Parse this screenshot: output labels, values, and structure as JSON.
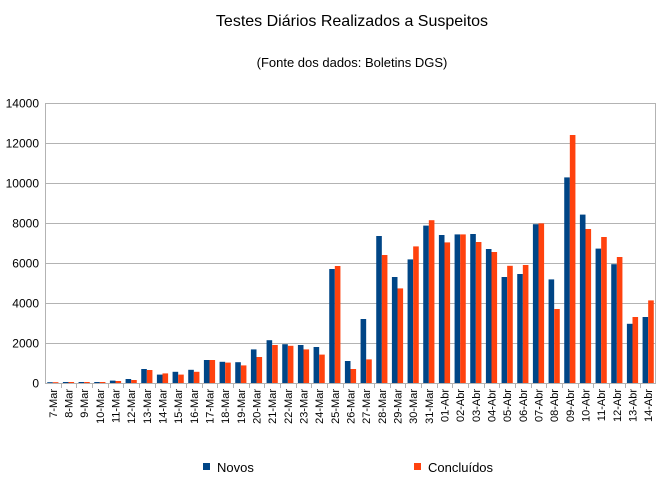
{
  "chart_data": {
    "type": "bar",
    "title": "Testes Diários Realizados a Suspeitos",
    "subtitle": "(Fonte dos dados: Boletins DGS)",
    "xlabel": "",
    "ylabel": "",
    "ylim": [
      0,
      14000
    ],
    "yticks": [
      0,
      2000,
      4000,
      6000,
      8000,
      10000,
      12000,
      14000
    ],
    "grid": true,
    "legend_position": "bottom",
    "categories": [
      "7-Mar",
      "8-Mar",
      "9-Mar",
      "10-Mar",
      "11-Mar",
      "12-Mar",
      "13-Mar",
      "14-Mar",
      "15-Mar",
      "16-Mar",
      "17-Mar",
      "18-Mar",
      "19-Mar",
      "20-Mar",
      "21-Mar",
      "22-Mar",
      "23-Mar",
      "24-Mar",
      "25-Mar",
      "26-Mar",
      "27-Mar",
      "28-Mar",
      "29-Mar",
      "30-Mar",
      "31-Mar",
      "01-Abr",
      "02-Abr",
      "03-Abr",
      "04-Abr",
      "05-Abr",
      "06-Abr",
      "07-Abr",
      "08-Abr",
      "09-Abr",
      "10-Abr",
      "11-Abr",
      "12-Abr",
      "13-Abr",
      "14-Abr"
    ],
    "series": [
      {
        "name": "Novos",
        "color": "#004586",
        "values": [
          40,
          50,
          50,
          50,
          120,
          200,
          700,
          420,
          560,
          660,
          1150,
          1060,
          1040,
          1680,
          2140,
          1940,
          1900,
          1800,
          5700,
          1100,
          3200,
          7350,
          5300,
          6180,
          7870,
          7400,
          7430,
          7450,
          6700,
          5300,
          5450,
          7940,
          5180,
          10280,
          8420,
          6720,
          5940,
          2960,
          3300
        ]
      },
      {
        "name": "Concluídos",
        "color": "#ff420e",
        "values": [
          40,
          50,
          50,
          50,
          100,
          150,
          650,
          480,
          420,
          560,
          1150,
          1020,
          880,
          1300,
          1900,
          1860,
          1680,
          1420,
          5850,
          700,
          1180,
          6400,
          4730,
          6830,
          8140,
          7030,
          7430,
          7050,
          6550,
          5860,
          5900,
          7980,
          3700,
          12400,
          7700,
          7300,
          6300,
          3300,
          4130
        ]
      }
    ]
  }
}
